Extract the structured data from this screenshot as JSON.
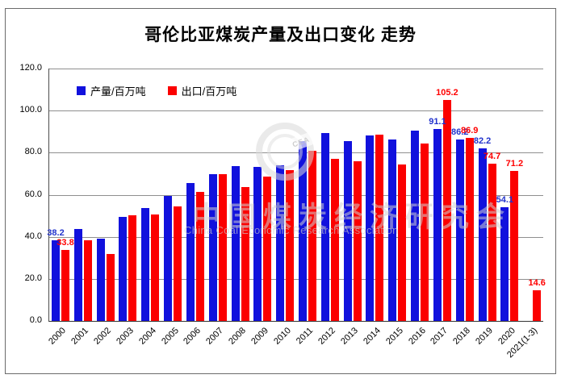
{
  "title": "哥伦比亚煤炭产量及出口变化 走势",
  "colors": {
    "production_bar": "#1111dd",
    "export_bar": "#fb0000",
    "production_label": "#2233cc",
    "export_label": "#ff0000",
    "gridline": "#8f8f8f"
  },
  "legend": {
    "items": [
      {
        "label": "产量/百万吨",
        "color": "#1111dd"
      },
      {
        "label": "出口/百万吨",
        "color": "#fb0000"
      }
    ]
  },
  "watermark": {
    "logo_letters": "CEA",
    "line_cn": "中国煤炭经济研究会",
    "line_en": "China Coal Economic Research Association"
  },
  "chart_data": {
    "type": "bar",
    "title": "哥伦比亚煤炭产量及出口变化 走势",
    "xlabel": "",
    "ylabel": "",
    "ylim": [
      0,
      120
    ],
    "grid": true,
    "legend_position": "top-left",
    "y_ticks": [
      "120.0",
      "100.0",
      "80.0",
      "60.0",
      "40.0",
      "20.0",
      "0.0"
    ],
    "categories": [
      "2000",
      "2001",
      "2002",
      "2003",
      "2004",
      "2005",
      "2006",
      "2007",
      "2008",
      "2009",
      "2010",
      "2011",
      "2012",
      "2013",
      "2014",
      "2015",
      "2016",
      "2017",
      "2018",
      "2019",
      "2020",
      "2021(1-3)"
    ],
    "series": [
      {
        "name": "产量/百万吨",
        "color": "#1111dd",
        "label_color": "#2233cc",
        "values": [
          38.2,
          43.9,
          39.1,
          49.5,
          53.8,
          59.4,
          65.7,
          69.9,
          73.8,
          73.1,
          74.0,
          85.4,
          89.2,
          85.4,
          88.3,
          86.2,
          90.6,
          91.1,
          86.2,
          82.2,
          54.1,
          null
        ],
        "point_labels": [
          "38.2",
          null,
          null,
          null,
          null,
          null,
          null,
          null,
          null,
          null,
          null,
          null,
          null,
          null,
          null,
          null,
          null,
          "91.1",
          "86.2",
          "82.2",
          "54.1",
          null
        ]
      },
      {
        "name": "出口/百万吨",
        "color": "#fb0000",
        "label_color": "#ff0000",
        "values": [
          33.8,
          38.3,
          31.8,
          50.3,
          50.8,
          54.4,
          61.2,
          69.6,
          63.8,
          68.8,
          71.6,
          81.0,
          77.0,
          75.8,
          88.7,
          74.2,
          84.5,
          105.2,
          86.9,
          74.7,
          71.2,
          14.6
        ],
        "point_labels": [
          "33.8",
          null,
          null,
          null,
          null,
          null,
          null,
          null,
          null,
          null,
          null,
          null,
          null,
          null,
          null,
          null,
          null,
          "105.2",
          "86.9",
          "74.7",
          "71.2",
          "14.6"
        ]
      }
    ]
  }
}
